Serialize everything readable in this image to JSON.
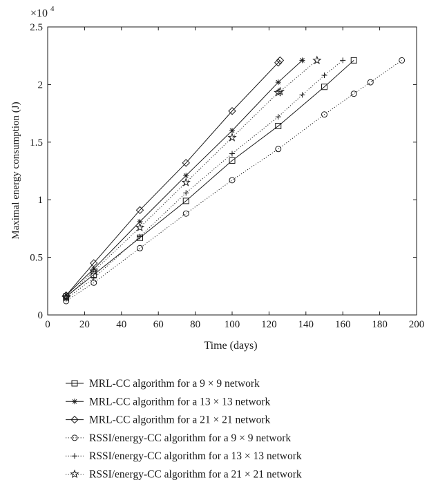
{
  "chart_data": {
    "type": "line",
    "title": "",
    "xlabel": "Time (days)",
    "ylabel": "Maximal energy consumption (J)",
    "y_scale_label": "×10",
    "y_scale_exponent": "4",
    "xlim": [
      0,
      200
    ],
    "ylim": [
      0,
      2.5
    ],
    "x_ticks": [
      0,
      20,
      40,
      60,
      80,
      100,
      120,
      140,
      160,
      180,
      200
    ],
    "y_ticks": [
      0,
      0.5,
      1,
      1.5,
      2,
      2.5
    ],
    "x_tick_labels": [
      "0",
      "20",
      "40",
      "60",
      "80",
      "100",
      "120",
      "140",
      "160",
      "180",
      "200"
    ],
    "y_tick_labels": [
      "0",
      "0.5",
      "1",
      "1.5",
      "2",
      "2.5"
    ],
    "grid": false,
    "legend_position": "below",
    "series": [
      {
        "name": "MRL-CC algorithm for a 9 × 9 network",
        "line_style": "solid",
        "marker": "square",
        "x": [
          10,
          25,
          50,
          75,
          100,
          125,
          150,
          166
        ],
        "y": [
          0.16,
          0.35,
          0.67,
          0.99,
          1.34,
          1.64,
          1.98,
          2.21
        ]
      },
      {
        "name": "MRL-CC algorithm for a 13 × 13 network",
        "line_style": "solid",
        "marker": "asterisk",
        "x": [
          10,
          25,
          50,
          75,
          100,
          125,
          138
        ],
        "y": [
          0.17,
          0.4,
          0.81,
          1.21,
          1.6,
          2.02,
          2.21
        ]
      },
      {
        "name": "MRL-CC algorithm for a 21 × 21 network",
        "line_style": "solid",
        "marker": "diamond",
        "x": [
          10,
          25,
          50,
          75,
          100,
          125,
          126
        ],
        "y": [
          0.17,
          0.45,
          0.91,
          1.32,
          1.77,
          2.19,
          2.21
        ]
      },
      {
        "name": "RSSI/energy-CC algorithm for a 9 × 9 network",
        "line_style": "dotted",
        "marker": "circle",
        "x": [
          10,
          25,
          50,
          75,
          100,
          125,
          150,
          166,
          175,
          192
        ],
        "y": [
          0.12,
          0.28,
          0.58,
          0.88,
          1.17,
          1.44,
          1.74,
          1.92,
          2.02,
          2.21
        ]
      },
      {
        "name": "RSSI/energy-CC algorithm for a 13 × 13 network",
        "line_style": "dotted",
        "marker": "plus",
        "x": [
          10,
          25,
          50,
          75,
          100,
          125,
          138,
          150,
          160
        ],
        "y": [
          0.14,
          0.32,
          0.68,
          1.06,
          1.4,
          1.72,
          1.91,
          2.08,
          2.21
        ]
      },
      {
        "name": "RSSI/energy-CC algorithm for a 21 × 21 network",
        "line_style": "dotted",
        "marker": "pentagram",
        "x": [
          10,
          25,
          50,
          75,
          100,
          125,
          126,
          146
        ],
        "y": [
          0.15,
          0.38,
          0.76,
          1.15,
          1.54,
          1.93,
          1.94,
          2.21
        ]
      }
    ]
  }
}
